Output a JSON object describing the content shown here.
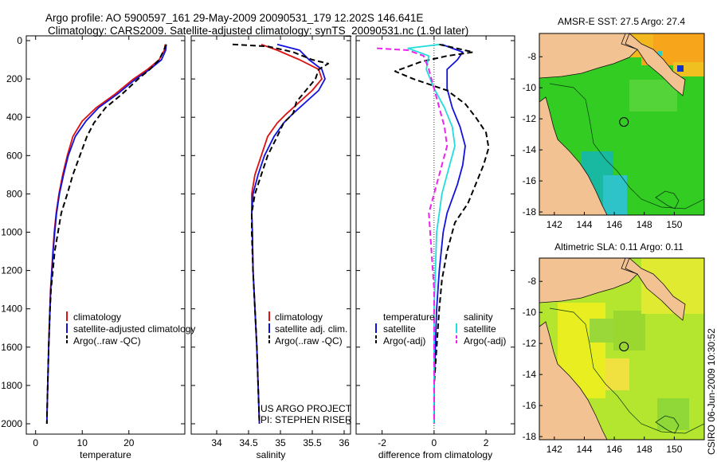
{
  "header": {
    "line1": "Argo profile: AO 5900597_161 29-May-2009 20090531_179 12.202S 146.641E",
    "line2": "Climatology: CARS2009. Satellite-adjusted climatology: synTS_20090531.nc (1.9d later)"
  },
  "colors": {
    "red": "#dd1111",
    "blue": "#1111dd",
    "black": "#000000",
    "cyan": "#22dddd",
    "magenta": "#ee22ee",
    "land": "#f2c292",
    "sst_warm": "#ffa500",
    "sst_green": "#33cc33"
  },
  "footer": {
    "project_line1": "US ARGO PROJECT",
    "project_line2": "PI: STEPHEN RISER",
    "credit": "CSIRO 06-Jun-2009 10:30:52"
  },
  "depth_axis": {
    "ticks": [
      "0",
      "200",
      "400",
      "600",
      "800",
      "1000",
      "1200",
      "1400",
      "1600",
      "1800",
      "2000"
    ]
  },
  "chart_data": [
    {
      "type": "line",
      "name": "temperature-panel",
      "title": "",
      "xlabel": "temperature",
      "ylabel": "",
      "xlim": [
        -2,
        32
      ],
      "ylim": [
        2050,
        -50
      ],
      "xticks": [
        0,
        10,
        20
      ],
      "xtick_labels": [
        "0",
        "10",
        "20"
      ],
      "legend": [
        "climatology",
        "satellite-adjusted climatology",
        "Argo(..raw -QC)"
      ],
      "series": [
        {
          "name": "climatology",
          "color": "red",
          "dash": "solid",
          "points": [
            [
              27.8,
              20
            ],
            [
              27.6,
              50
            ],
            [
              26.5,
              100
            ],
            [
              24,
              150
            ],
            [
              21,
              200
            ],
            [
              17,
              280
            ],
            [
              13,
              350
            ],
            [
              10,
              420
            ],
            [
              8,
              500
            ],
            [
              6.8,
              600
            ],
            [
              5.8,
              700
            ],
            [
              5,
              800
            ],
            [
              4.4,
              900
            ],
            [
              4,
              1000
            ],
            [
              3.7,
              1100
            ],
            [
              3.45,
              1200
            ],
            [
              3.2,
              1300
            ],
            [
              3.05,
              1400
            ],
            [
              2.9,
              1500
            ],
            [
              2.8,
              1600
            ],
            [
              2.7,
              1700
            ],
            [
              2.6,
              1800
            ],
            [
              2.5,
              1900
            ],
            [
              2.4,
              2000
            ]
          ]
        },
        {
          "name": "satellite-adjusted climatology",
          "color": "blue",
          "dash": "solid",
          "points": [
            [
              28,
              20
            ],
            [
              27.9,
              50
            ],
            [
              27,
              100
            ],
            [
              24.5,
              150
            ],
            [
              21.5,
              200
            ],
            [
              17.5,
              280
            ],
            [
              13.5,
              350
            ],
            [
              10.8,
              420
            ],
            [
              8.5,
              500
            ],
            [
              7,
              600
            ],
            [
              6,
              700
            ],
            [
              5.1,
              800
            ],
            [
              4.5,
              900
            ],
            [
              4.1,
              1000
            ],
            [
              3.75,
              1100
            ],
            [
              3.5,
              1200
            ],
            [
              3.25,
              1300
            ],
            [
              3.1,
              1400
            ],
            [
              2.95,
              1500
            ],
            [
              2.8,
              1600
            ],
            [
              2.7,
              1700
            ],
            [
              2.6,
              1800
            ],
            [
              2.5,
              1900
            ],
            [
              2.4,
              2000
            ]
          ]
        },
        {
          "name": "Argo(..raw -QC)",
          "color": "black",
          "dash": "dash",
          "points": [
            [
              28,
              20
            ],
            [
              27.5,
              50
            ],
            [
              26.5,
              100
            ],
            [
              24.5,
              150
            ],
            [
              22,
              200
            ],
            [
              18.5,
              280
            ],
            [
              15,
              350
            ],
            [
              12.5,
              430
            ],
            [
              11,
              500
            ],
            [
              9.5,
              600
            ],
            [
              8,
              700
            ],
            [
              6.8,
              800
            ],
            [
              5.5,
              900
            ],
            [
              4.8,
              1000
            ],
            [
              4.1,
              1100
            ],
            [
              3.7,
              1200
            ],
            [
              3.3,
              1300
            ],
            [
              3.1,
              1400
            ],
            [
              2.95,
              1500
            ],
            [
              2.8,
              1600
            ],
            [
              2.7,
              1700
            ],
            [
              2.6,
              1800
            ],
            [
              2.5,
              1900
            ],
            [
              2.4,
              2000
            ]
          ]
        }
      ]
    },
    {
      "type": "line",
      "name": "salinity-panel",
      "title": "",
      "xlabel": "salinity",
      "ylabel": "",
      "xlim": [
        33.6,
        36.1
      ],
      "ylim": [
        2050,
        -50
      ],
      "xticks": [
        34,
        34.5,
        35,
        35.5,
        36
      ],
      "xtick_labels": [
        "34",
        "34.5",
        "35",
        "35.5",
        "36"
      ],
      "legend": [
        "climatology",
        "satellite adj. clim.",
        "Argo(..raw -QC)"
      ],
      "series": [
        {
          "name": "climatology",
          "color": "red",
          "dash": "solid",
          "points": [
            [
              34.7,
              20
            ],
            [
              34.95,
              50
            ],
            [
              35.3,
              100
            ],
            [
              35.6,
              150
            ],
            [
              35.65,
              200
            ],
            [
              35.5,
              260
            ],
            [
              35.3,
              320
            ],
            [
              35.1,
              380
            ],
            [
              34.95,
              430
            ],
            [
              34.8,
              500
            ],
            [
              34.7,
              600
            ],
            [
              34.6,
              700
            ],
            [
              34.55,
              800
            ],
            [
              34.55,
              900
            ],
            [
              34.56,
              1000
            ],
            [
              34.57,
              1200
            ],
            [
              34.6,
              1400
            ],
            [
              34.63,
              1600
            ],
            [
              34.65,
              1800
            ],
            [
              34.67,
              2000
            ]
          ]
        },
        {
          "name": "satellite adj. clim.",
          "color": "blue",
          "dash": "solid",
          "points": [
            [
              34.95,
              20
            ],
            [
              35.3,
              50
            ],
            [
              35.45,
              100
            ],
            [
              35.65,
              150
            ],
            [
              35.7,
              200
            ],
            [
              35.6,
              260
            ],
            [
              35.4,
              320
            ],
            [
              35.2,
              380
            ],
            [
              35.05,
              430
            ],
            [
              34.9,
              500
            ],
            [
              34.75,
              600
            ],
            [
              34.65,
              700
            ],
            [
              34.57,
              800
            ],
            [
              34.55,
              900
            ],
            [
              34.56,
              1000
            ],
            [
              34.57,
              1200
            ],
            [
              34.6,
              1400
            ],
            [
              34.63,
              1600
            ],
            [
              34.65,
              1800
            ],
            [
              34.67,
              2000
            ]
          ]
        },
        {
          "name": "Argo(..raw -QC)",
          "color": "black",
          "dash": "dash",
          "points": [
            [
              34.25,
              20
            ],
            [
              34.8,
              30
            ],
            [
              35.2,
              60
            ],
            [
              35.5,
              100
            ],
            [
              35.75,
              120
            ],
            [
              35.6,
              150
            ],
            [
              35.55,
              200
            ],
            [
              35.4,
              260
            ],
            [
              35.25,
              320
            ],
            [
              35.2,
              380
            ],
            [
              35.05,
              430
            ],
            [
              34.95,
              500
            ],
            [
              34.8,
              600
            ],
            [
              34.7,
              700
            ],
            [
              34.6,
              800
            ],
            [
              34.55,
              900
            ],
            [
              34.55,
              1000
            ],
            [
              34.57,
              1200
            ],
            [
              34.6,
              1400
            ],
            [
              34.63,
              1600
            ],
            [
              34.65,
              1800
            ],
            [
              34.67,
              2000
            ]
          ]
        }
      ]
    },
    {
      "type": "line",
      "name": "difference-panel",
      "title": "",
      "xlabel": "difference from climatology",
      "ylabel": "",
      "xlim": [
        -3,
        3.1
      ],
      "ylim": [
        2050,
        -50
      ],
      "xticks": [
        -2,
        0,
        2
      ],
      "xtick_labels": [
        "-2",
        "0",
        "2"
      ],
      "legend_temperature_header": "temperature",
      "legend_salinity_header": "salinity",
      "legend": [
        "satellite",
        "Argo(-adj)",
        "satellite",
        "Argo(-adj)"
      ],
      "zero_line": true,
      "series": [
        {
          "name": "temperature satellite",
          "color": "blue",
          "dash": "solid",
          "points": [
            [
              0.3,
              20
            ],
            [
              1.1,
              60
            ],
            [
              0.9,
              100
            ],
            [
              0.5,
              150
            ],
            [
              0.5,
              250
            ],
            [
              0.7,
              350
            ],
            [
              1.0,
              450
            ],
            [
              1.2,
              550
            ],
            [
              1.1,
              650
            ],
            [
              0.9,
              750
            ],
            [
              0.5,
              900
            ],
            [
              0.35,
              1000
            ],
            [
              0.2,
              1200
            ],
            [
              0.1,
              1400
            ],
            [
              0.05,
              1600
            ],
            [
              0,
              1800
            ],
            [
              0,
              2000
            ]
          ]
        },
        {
          "name": "temperature Argo(-adj)",
          "color": "black",
          "dash": "dash",
          "points": [
            [
              0.2,
              20
            ],
            [
              1.5,
              60
            ],
            [
              0.5,
              80
            ],
            [
              -0.5,
              110
            ],
            [
              -1.5,
              160
            ],
            [
              -0.8,
              200
            ],
            [
              0.5,
              260
            ],
            [
              1.2,
              330
            ],
            [
              1.6,
              400
            ],
            [
              2.0,
              480
            ],
            [
              2.1,
              560
            ],
            [
              1.9,
              650
            ],
            [
              1.6,
              750
            ],
            [
              1.3,
              850
            ],
            [
              0.8,
              950
            ],
            [
              0.5,
              1100
            ],
            [
              0.3,
              1250
            ],
            [
              0.2,
              1400
            ],
            [
              0.1,
              1600
            ],
            [
              0,
              1800
            ],
            [
              0,
              2000
            ]
          ]
        },
        {
          "name": "salinity satellite",
          "color": "cyan",
          "dash": "solid",
          "points": [
            [
              0.2,
              20
            ],
            [
              -1.0,
              40
            ],
            [
              -0.2,
              80
            ],
            [
              -0.3,
              150
            ],
            [
              0.0,
              250
            ],
            [
              0.4,
              350
            ],
            [
              0.7,
              450
            ],
            [
              0.8,
              550
            ],
            [
              0.6,
              650
            ],
            [
              0.3,
              800
            ],
            [
              0.1,
              1000
            ],
            [
              0.05,
              1200
            ],
            [
              0,
              1400
            ],
            [
              0,
              1600
            ],
            [
              0,
              1800
            ],
            [
              0,
              2000
            ]
          ]
        },
        {
          "name": "salinity Argo(-adj)",
          "color": "magenta",
          "dash": "dash",
          "points": [
            [
              -2.2,
              40
            ],
            [
              -1.0,
              50
            ],
            [
              -0.4,
              80
            ],
            [
              -0.2,
              150
            ],
            [
              0.0,
              250
            ],
            [
              0.2,
              350
            ],
            [
              0.4,
              450
            ],
            [
              0.5,
              550
            ],
            [
              0.2,
              700
            ],
            [
              -0.2,
              900
            ],
            [
              -0.1,
              1100
            ],
            [
              0,
              1300
            ],
            [
              0,
              1500
            ],
            [
              0,
              1800
            ],
            [
              0,
              2000
            ]
          ]
        }
      ]
    },
    {
      "type": "heatmap",
      "name": "sst-map",
      "title": "AMSR-E SST: 27.5 Argo: 27.4",
      "xlim": [
        141,
        152
      ],
      "ylim": [
        -18.2,
        -6.5
      ],
      "xticks": [
        142,
        144,
        146,
        148,
        150
      ],
      "xtick_labels": [
        "142",
        "144",
        "146",
        "148",
        "150"
      ],
      "yticks": [
        -8,
        -10,
        -12,
        -14,
        -16,
        -18
      ],
      "ytick_labels": [
        "-8",
        "-10",
        "-12",
        "-14",
        "-16",
        "-18"
      ],
      "argo_position": [
        146.641,
        -12.202
      ]
    },
    {
      "type": "heatmap",
      "name": "sla-map",
      "title": "Altimetric SLA: 0.11 Argo: 0.11",
      "xlim": [
        141,
        152
      ],
      "ylim": [
        -18.2,
        -6.5
      ],
      "xticks": [
        142,
        144,
        146,
        148,
        150
      ],
      "xtick_labels": [
        "142",
        "144",
        "146",
        "148",
        "150"
      ],
      "yticks": [
        -8,
        -10,
        -12,
        -14,
        -16,
        -18
      ],
      "ytick_labels": [
        "-8",
        "-10",
        "-12",
        "-14",
        "-16",
        "-18"
      ],
      "argo_position": [
        146.641,
        -12.202
      ]
    }
  ]
}
